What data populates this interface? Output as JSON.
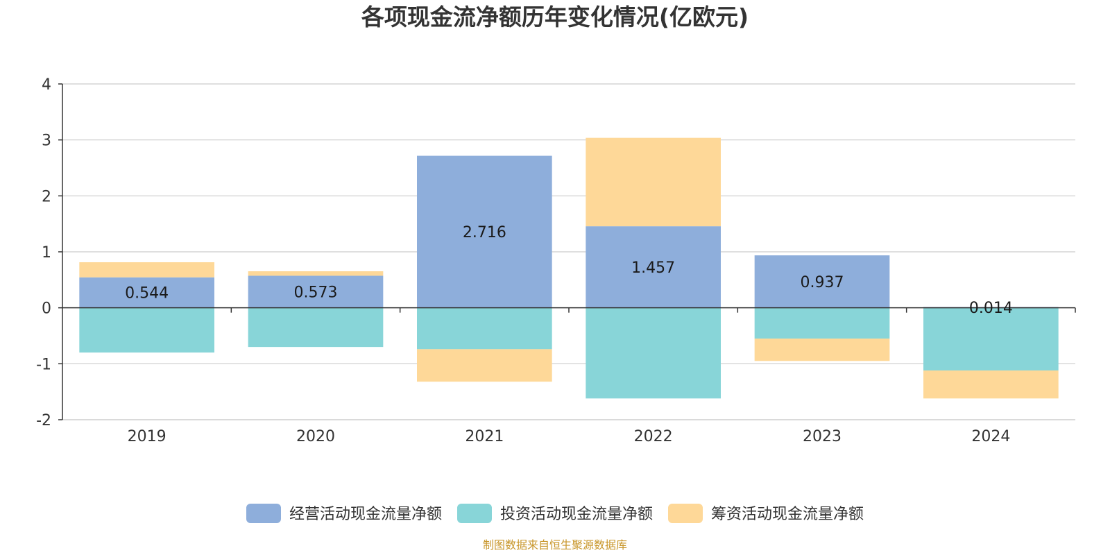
{
  "chart_data": {
    "type": "bar",
    "stacked": true,
    "title": "各项现金流净额历年变化情况(亿欧元)",
    "categories": [
      "2019",
      "2020",
      "2021",
      "2022",
      "2023",
      "2024"
    ],
    "series": [
      {
        "name": "经营活动现金流量净额",
        "color": "#8eaedb",
        "values": [
          0.544,
          0.573,
          2.716,
          1.457,
          0.937,
          0.014
        ]
      },
      {
        "name": "投资活动现金流量净额",
        "color": "#88d5d8",
        "values": [
          -0.8,
          -0.7,
          -0.74,
          -1.62,
          -0.55,
          -1.12
        ]
      },
      {
        "name": "筹资活动现金流量净额",
        "color": "#fed898",
        "values": [
          0.27,
          0.08,
          -0.58,
          1.58,
          -0.4,
          -0.5
        ]
      }
    ],
    "data_labels": [
      "0.544",
      "0.573",
      "2.716",
      "1.457",
      "0.937",
      "0.014"
    ],
    "yticks": [
      "4",
      "3",
      "2",
      "1",
      "0",
      "-1",
      "-2"
    ],
    "ylim": [
      -2,
      4
    ],
    "grid": true,
    "legend_position": "bottom-center",
    "source": "制图数据来自恒生聚源数据库"
  }
}
